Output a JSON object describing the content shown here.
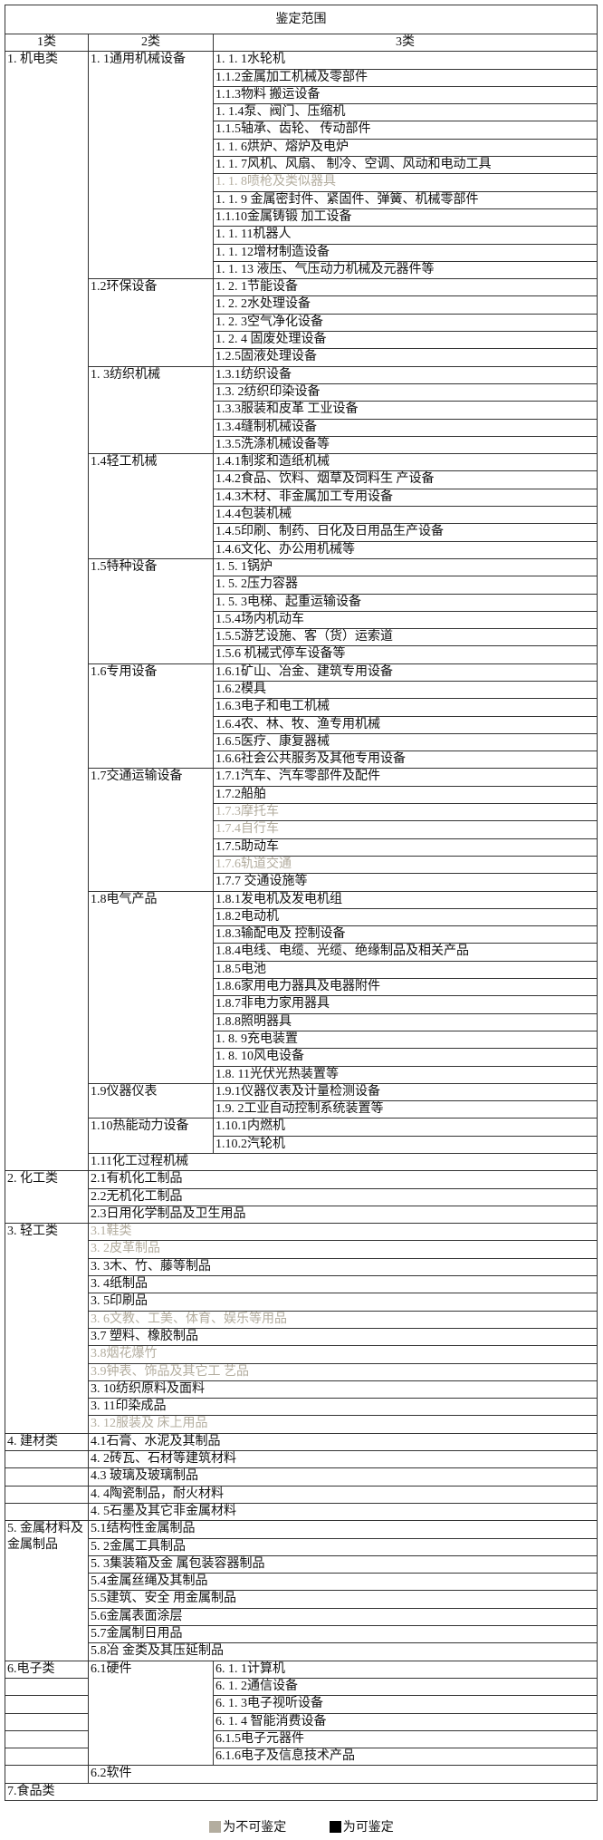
{
  "title": "鉴定范围",
  "headers": [
    "1类",
    "2类",
    "3类"
  ],
  "colors": {
    "not_appraisable": "#b3ad9f",
    "appraisable": "#000000"
  },
  "sections": [
    {
      "label": "1. 机电类",
      "groups": [
        {
          "label": "1. 1通用机械设备",
          "items": [
            {
              "text": "1. 1. 1水轮机",
              "available": true
            },
            {
              "text": "1.1.2金属加工机械及零部件",
              "available": true
            },
            {
              "text": "1.1.3物料 搬运设备",
              "available": true
            },
            {
              "text": "1. 1.4泵、阀门、压缩机",
              "available": true
            },
            {
              "text": "1.1.5轴承、齿轮、 传动部件",
              "available": true
            },
            {
              "text": "1. 1. 6烘炉、熔炉及电炉",
              "available": true
            },
            {
              "text": "1. 1. 7风机、风扇、 制冷、空调、风动和电动工具",
              "available": true
            },
            {
              "text": "1. 1. 8喷枪及类似器具",
              "available": false
            },
            {
              "text": "1. 1. 9 金属密封件、紧固件、弹簧、机械零部件",
              "available": true
            },
            {
              "text": "1.1.10金属铸锻 加工设备",
              "available": true
            },
            {
              "text": "1. 1. 11机器人",
              "available": true
            },
            {
              "text": "1. 1. 12增材制造设备",
              "available": true
            },
            {
              "text": "1. 1. 13 液压、气压动力机械及元器件等",
              "available": true
            }
          ]
        },
        {
          "label": "1.2环保设备",
          "items": [
            {
              "text": "1. 2. 1节能设备",
              "available": true
            },
            {
              "text": "1. 2. 2水处理设备",
              "available": true
            },
            {
              "text": "1. 2. 3空气净化设备",
              "available": true
            },
            {
              "text": "1. 2. 4 固废处理设备",
              "available": true
            },
            {
              "text": "1.2.5固液处理设备",
              "available": true
            }
          ]
        },
        {
          "label": "1. 3纺织机械",
          "items": [
            {
              "text": "1.3.1纺织设备",
              "available": true
            },
            {
              "text": "1.3. 2纺织印染设备",
              "available": true
            },
            {
              "text": "1.3.3服装和皮革 工业设备",
              "available": true
            },
            {
              "text": "1.3.4缝制机械设备",
              "available": true
            },
            {
              "text": "1.3.5洗涤机械设备等",
              "available": true
            }
          ]
        },
        {
          "label": "1.4轻工机械",
          "items": [
            {
              "text": "1.4.1制浆和造纸机械",
              "available": true
            },
            {
              "text": "1.4.2食品、饮料、烟草及饲料生 产设备",
              "available": true
            },
            {
              "text": "1.4.3木材、非金属加工专用设备",
              "available": true
            },
            {
              "text": "1.4.4包装机械",
              "available": true
            },
            {
              "text": "1.4.5印刷、制药、日化及日用品生产设备",
              "available": true
            },
            {
              "text": "1.4.6文化、办公用机械等",
              "available": true
            }
          ]
        },
        {
          "label": "1.5特种设备",
          "items": [
            {
              "text": "1. 5. 1锅炉",
              "available": true
            },
            {
              "text": "1. 5. 2压力容器",
              "available": true
            },
            {
              "text": "1. 5. 3电梯、起重运输设备",
              "available": true
            },
            {
              "text": "1.5.4场内机动车",
              "available": true
            },
            {
              "text": "1.5.5游艺设施、客（货）运索道",
              "available": true
            },
            {
              "text": "1.5.6 机械式停车设备等",
              "available": true
            }
          ]
        },
        {
          "label": "1.6专用设备",
          "items": [
            {
              "text": "1.6.1矿山、冶金、建筑专用设备",
              "available": true
            },
            {
              "text": "1.6.2模具",
              "available": true
            },
            {
              "text": "1.6.3电子和电工机械",
              "available": true
            },
            {
              "text": "1.6.4农、林、牧、渔专用机械",
              "available": true
            },
            {
              "text": "1.6.5医疗、康复器械",
              "available": true
            },
            {
              "text": "1.6.6社会公共服务及其他专用设备",
              "available": true
            }
          ]
        },
        {
          "label": "1.7交通运输设备",
          "items": [
            {
              "text": "1.7.1汽车、汽车零部件及配件",
              "available": true
            },
            {
              "text": "1.7.2船舶",
              "available": true
            },
            {
              "text": "1.7.3摩托车",
              "available": false
            },
            {
              "text": "1.7.4自行车",
              "available": false
            },
            {
              "text": "1.7.5助动车",
              "available": true
            },
            {
              "text": "1.7.6轨道交通",
              "available": false
            },
            {
              "text": "1.7.7 交通设施等",
              "available": true
            }
          ]
        },
        {
          "label": "1.8电气产品",
          "items": [
            {
              "text": "1.8.1发电机及发电机组",
              "available": true
            },
            {
              "text": "1.8.2电动机",
              "available": true
            },
            {
              "text": "1.8.3输配电及 控制设备",
              "available": true
            },
            {
              "text": "1.8.4电线、电缆、光缆、绝缘制品及相关产品",
              "available": true
            },
            {
              "text": "1.8.5电池",
              "available": true
            },
            {
              "text": "1.8.6家用电力器具及电器附件",
              "available": true
            },
            {
              "text": "1.8.7非电力家用器具",
              "available": true
            },
            {
              "text": "1.8.8照明器具",
              "available": true
            },
            {
              "text": "1. 8. 9充电装置",
              "available": true
            },
            {
              "text": "1. 8. 10风电设备",
              "available": true
            },
            {
              "text": "1.8. 11光伏光热装置等",
              "available": true
            }
          ]
        },
        {
          "label": "1.9仪器仪表",
          "items": [
            {
              "text": "1.9.1仪器仪表及计量检测设备",
              "available": true
            },
            {
              "text": "1.9. 2工业自动控制系统装置等",
              "available": true
            }
          ]
        },
        {
          "label": "1.10热能动力设备",
          "items": [
            {
              "text": "1.10.1内燃机",
              "available": true
            },
            {
              "text": "1.10.2汽轮机",
              "available": true
            }
          ]
        },
        {
          "label": "1.11化工过程机械",
          "available": true,
          "items": []
        }
      ]
    },
    {
      "label": "2. 化工类",
      "groups": [
        {
          "label": "2.1有机化工制品",
          "available": true,
          "items": []
        },
        {
          "label": "2.2无机化工制品",
          "available": true,
          "items": []
        },
        {
          "label": "2.3日用化学制品及卫生用品",
          "available": true,
          "items": []
        }
      ]
    },
    {
      "label": "3. 轻工类",
      "groups": [
        {
          "label": "3.1鞋类",
          "available": false,
          "items": []
        },
        {
          "label": "3. 2皮革制品",
          "available": false,
          "items": []
        },
        {
          "label": "3. 3木、竹、藤等制品",
          "available": true,
          "items": []
        },
        {
          "label": "3. 4纸制品",
          "available": true,
          "items": []
        },
        {
          "label": "3. 5印刷品",
          "available": true,
          "items": []
        },
        {
          "label": "3. 6文教、工美、体育、娱乐等用品",
          "available": false,
          "items": []
        },
        {
          "label": "3.7 塑料、橡胶制品",
          "available": true,
          "items": []
        },
        {
          "label": "3.8烟花爆竹",
          "available": false,
          "items": []
        },
        {
          "label": "3.9钟表、饰品及其它工 艺品",
          "available": false,
          "items": []
        },
        {
          "label": "3. 10纺织原料及面料",
          "available": true,
          "items": []
        },
        {
          "label": "3. 11印染成品",
          "available": true,
          "items": []
        },
        {
          "label": "3. 12服装及 床上用品",
          "available": false,
          "items": []
        }
      ]
    },
    {
      "label": "4. 建材类",
      "split": true,
      "groups": [
        {
          "label": "4.1石膏、水泥及其制品",
          "available": true,
          "items": []
        },
        {
          "label": "4. 2砖瓦、石材等建筑材料",
          "available": true,
          "items": []
        },
        {
          "label": "4.3 玻璃及玻璃制品",
          "available": true,
          "items": []
        },
        {
          "label": "4. 4陶瓷制品，耐火材料",
          "available": true,
          "items": []
        },
        {
          "label": "4. 5石墨及其它非金属材料",
          "available": true,
          "items": []
        }
      ]
    },
    {
      "label": "5. 金属材料及金属制品",
      "groups": [
        {
          "label": "5.1结构性金属制品",
          "available": true,
          "items": []
        },
        {
          "label": "5. 2金属工具制品",
          "available": true,
          "items": []
        },
        {
          "label": "5. 3集装箱及金 属包装容器制品",
          "available": true,
          "items": []
        },
        {
          "label": "5.4金属丝绳及其制品",
          "available": true,
          "items": []
        },
        {
          "label": "5.5建筑、安全 用金属制品",
          "available": true,
          "items": []
        },
        {
          "label": "5.6金属表面涂层",
          "available": true,
          "items": []
        },
        {
          "label": "5.7金属制日用品",
          "available": true,
          "items": []
        },
        {
          "label": "5.8冶 金类及其压延制品",
          "available": true,
          "items": []
        }
      ]
    },
    {
      "label": "6.电子类",
      "split": true,
      "groups": [
        {
          "label": "6.1硬件",
          "items": [
            {
              "text": "6. 1. 1计算机",
              "available": true
            },
            {
              "text": "6. 1. 2通信设备",
              "available": true
            },
            {
              "text": "6. 1. 3电子视听设备",
              "available": true
            },
            {
              "text": "6. 1. 4 智能消费设备",
              "available": true
            },
            {
              "text": "6.1.5电子元器件",
              "available": true
            },
            {
              "text": "6.1.6电子及信息技术产品",
              "available": true
            }
          ]
        },
        {
          "label": "6.2软件",
          "available": true,
          "items": []
        }
      ]
    },
    {
      "label": "7.食品类",
      "groups": []
    }
  ],
  "legend": [
    {
      "label": "为不可鉴定",
      "color": "#b3ad9f"
    },
    {
      "label": "为可鉴定",
      "color": "#000000"
    }
  ]
}
